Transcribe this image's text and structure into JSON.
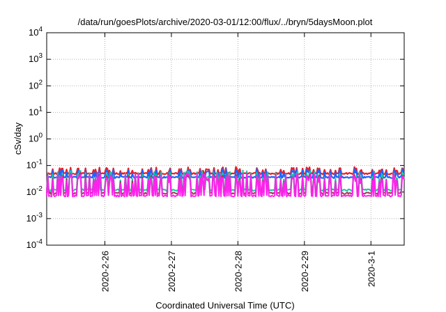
{
  "chart_data": {
    "type": "line",
    "title": "/data/run/goesPlots/archive/2020-03-01/12:00/flux/../bryn/5daysMoon.plot",
    "xlabel": "Coordinated Universal Time (UTC)",
    "ylabel": "cSv/day",
    "yscale": "log",
    "ylim": [
      0.0001,
      10000
    ],
    "yticks": [
      {
        "value": 0.0001,
        "base": "10",
        "exp": "-4"
      },
      {
        "value": 0.001,
        "base": "10",
        "exp": "-3"
      },
      {
        "value": 0.01,
        "base": "10",
        "exp": "-2"
      },
      {
        "value": 0.1,
        "base": "10",
        "exp": "-1"
      },
      {
        "value": 1,
        "base": "10",
        "exp": "0"
      },
      {
        "value": 10,
        "base": "10",
        "exp": "1"
      },
      {
        "value": 100,
        "base": "10",
        "exp": "2"
      },
      {
        "value": 1000,
        "base": "10",
        "exp": "3"
      },
      {
        "value": 10000,
        "base": "10",
        "exp": "4"
      }
    ],
    "xlim": [
      "2020-02-25 03:00",
      "2020-03-01 12:00"
    ],
    "xticks": [
      {
        "value": "2020-02-26 00:00",
        "label": "2020-2-26"
      },
      {
        "value": "2020-02-27 00:00",
        "label": "2020-2-27"
      },
      {
        "value": "2020-02-28 00:00",
        "label": "2020-2-28"
      },
      {
        "value": "2020-02-29 00:00",
        "label": "2020-2-29"
      },
      {
        "value": "2020-03-01 00:00",
        "label": "2020-3-1"
      }
    ],
    "grid": true,
    "series": [
      {
        "color": "#ee1c24",
        "base": 0.05,
        "peak": 0.085,
        "spike_prob": 0.28
      },
      {
        "color": "#1f63ff",
        "base": 0.036,
        "peak": 0.072,
        "spike_prob": 0.28
      },
      {
        "color": "#18c4a0",
        "base": 0.012,
        "peak": 0.06,
        "spike_prob": 0.38
      },
      {
        "color": "#a23a55",
        "base": 0.009,
        "peak": 0.05,
        "spike_prob": 0.4
      },
      {
        "color": "#ff22ee",
        "base": 0.0072,
        "peak": 0.048,
        "spike_prob": 0.4
      }
    ]
  }
}
